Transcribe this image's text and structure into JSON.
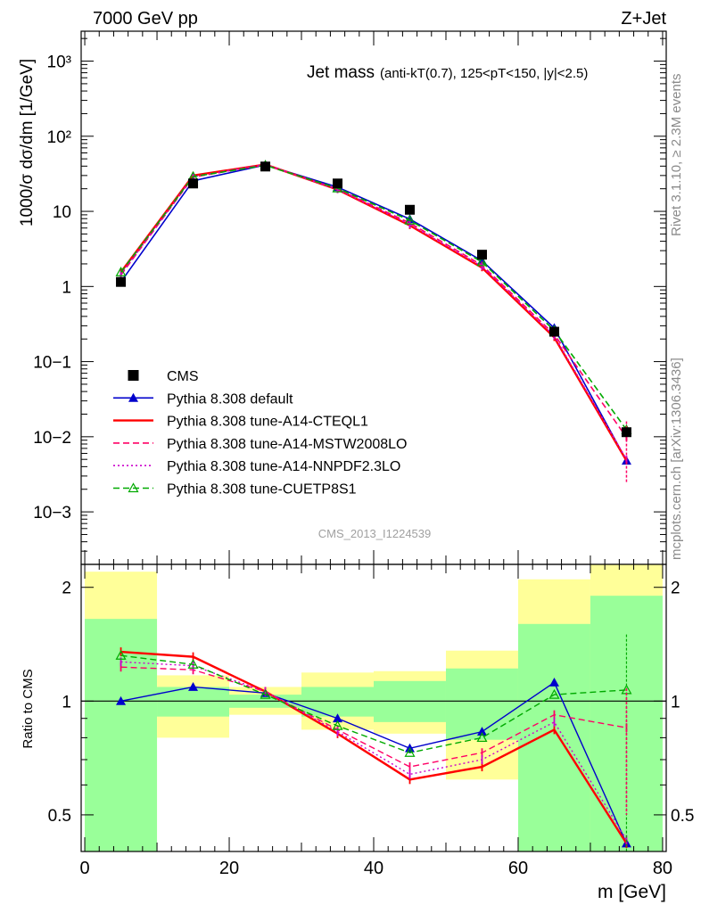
{
  "header": {
    "left": "7000 GeV pp",
    "right": "Z+Jet",
    "title_main": "Jet mass",
    "title_sub": "(anti-kT(0.7), 125<pT<150, |y|<2.5)",
    "side_top": "Rivet 3.1.10, ≥ 2.3M events",
    "side_bottom": "mcplots.cern.ch [arXiv:1306.3436]",
    "watermark": "CMS_2013_I1224539"
  },
  "chart_data": [
    {
      "type": "line",
      "panel": "main",
      "ylabel": "1000/σ dσ/dm [1/GeV]",
      "yscale": "log",
      "ylim": [
        0.0002,
        2500
      ],
      "xlim": [
        -0.5,
        80.5
      ],
      "y_ticks": [
        "10−3",
        "10−2",
        "10−1",
        "1",
        "10",
        "10²",
        "10³"
      ],
      "x": [
        5,
        15,
        25,
        35,
        45,
        55,
        65,
        75
      ],
      "data": {
        "name": "CMS",
        "color": "#000000",
        "values": [
          1.15,
          23.5,
          39.5,
          23.5,
          10.5,
          2.65,
          0.25,
          0.0115
        ],
        "bins": [
          [
            0,
            10
          ],
          [
            10,
            20
          ],
          [
            20,
            30
          ],
          [
            30,
            40
          ],
          [
            40,
            50
          ],
          [
            50,
            60
          ],
          [
            60,
            70
          ],
          [
            70,
            80
          ]
        ]
      },
      "series": [
        {
          "name": "Pythia 8.308 default",
          "color": "#0000cc",
          "dash": "solid",
          "marker": "filled-triangle",
          "values": [
            1.15,
            25.5,
            41.5,
            21.0,
            7.9,
            2.2,
            0.28,
            0.0048
          ]
        },
        {
          "name": "Pythia 8.308 tune-A14-CTEQL1",
          "color": "#ff0000",
          "dash": "solid",
          "marker": "none",
          "values": [
            1.55,
            30.0,
            42.0,
            19.5,
            6.5,
            1.78,
            0.21,
            0.0048
          ]
        },
        {
          "name": "Pythia 8.308 tune-A14-MSTW2008LO",
          "color": "#ff0066",
          "dash": "dashed",
          "marker": "none",
          "values": [
            1.42,
            28.5,
            42.0,
            19.8,
            7.0,
            1.92,
            0.23,
            0.0098
          ]
        },
        {
          "name": "Pythia 8.308 tune-A14-NNPDF2.3LO",
          "color": "#cc00cc",
          "dash": "dotted",
          "marker": "none",
          "values": [
            1.45,
            29.0,
            42.0,
            19.6,
            6.7,
            1.85,
            0.22,
            0.005
          ]
        },
        {
          "name": "Pythia 8.308 tune-CUETP8S1",
          "color": "#00aa00",
          "dash": "dashed",
          "marker": "open-triangle",
          "values": [
            1.55,
            29.0,
            41.0,
            20.3,
            7.6,
            2.12,
            0.26,
            0.0124
          ]
        }
      ]
    },
    {
      "type": "line",
      "panel": "ratio",
      "ylabel": "Ratio to CMS",
      "xlabel": "m [GeV]",
      "yscale": "log",
      "ylim": [
        0.4,
        2.3
      ],
      "xlim": [
        -0.5,
        80.5
      ],
      "x_ticks": [
        "0",
        "20",
        "40",
        "60",
        "80"
      ],
      "y_ticks": [
        "0.5",
        "1",
        "2"
      ],
      "x": [
        5,
        15,
        25,
        35,
        45,
        55,
        65,
        75
      ],
      "bands": {
        "bins": [
          [
            0,
            10
          ],
          [
            10,
            20
          ],
          [
            20,
            30
          ],
          [
            30,
            40
          ],
          [
            40,
            50
          ],
          [
            50,
            60
          ],
          [
            60,
            70
          ],
          [
            70,
            80
          ]
        ],
        "yellow": [
          [
            0.4,
            2.2
          ],
          [
            0.8,
            1.17
          ],
          [
            0.92,
            1.09
          ],
          [
            0.84,
            1.19
          ],
          [
            0.82,
            1.2
          ],
          [
            0.62,
            1.36
          ],
          [
            0.38,
            2.1
          ],
          [
            0.4,
            2.3
          ]
        ],
        "green": [
          [
            0.4,
            1.65
          ],
          [
            0.91,
            1.09
          ],
          [
            0.96,
            1.04
          ],
          [
            0.91,
            1.09
          ],
          [
            0.88,
            1.13
          ],
          [
            0.79,
            1.22
          ],
          [
            0.4,
            1.6
          ],
          [
            0.4,
            1.9
          ]
        ],
        "yellow_color": "#ffff99",
        "green_color": "#99ff99"
      },
      "series": [
        {
          "name": "Pythia 8.308 default",
          "values": [
            1.0,
            1.09,
            1.05,
            0.9,
            0.75,
            0.83,
            1.12,
            0.42
          ]
        },
        {
          "name": "Pythia 8.308 tune-A14-CTEQL1",
          "values": [
            1.35,
            1.31,
            1.06,
            0.82,
            0.62,
            0.67,
            0.84,
            0.42
          ]
        },
        {
          "name": "Pythia 8.308 tune-A14-MSTW2008LO",
          "values": [
            1.23,
            1.21,
            1.06,
            0.84,
            0.67,
            0.73,
            0.92,
            0.85
          ]
        },
        {
          "name": "Pythia 8.308 tune-A14-NNPDF2.3LO",
          "values": [
            1.27,
            1.24,
            1.06,
            0.83,
            0.64,
            0.7,
            0.88,
            0.43
          ]
        },
        {
          "name": "Pythia 8.308 tune-CUETP8S1",
          "values": [
            1.32,
            1.25,
            1.04,
            0.86,
            0.73,
            0.8,
            1.04,
            1.07
          ]
        }
      ]
    }
  ]
}
